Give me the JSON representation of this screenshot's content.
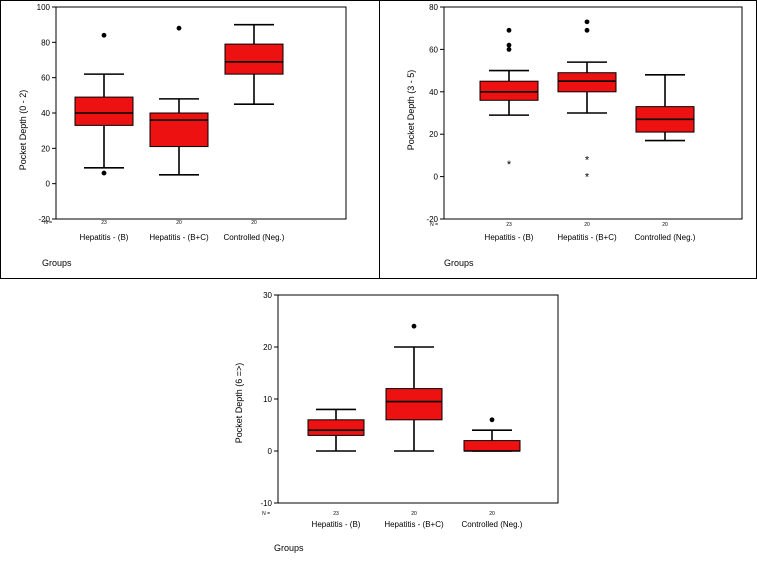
{
  "chart_data": [
    {
      "type": "box",
      "ylabel": "Pocket Depth (0 - 2)",
      "xlabel": "Groups",
      "n_label": "N =",
      "ylim": [
        -20,
        100
      ],
      "yticks": [
        -20,
        0,
        20,
        40,
        60,
        80,
        100
      ],
      "categories": [
        "Hepatitis - (B)",
        "Hepatitis - (B+C)",
        "Controlled (Neg.)"
      ],
      "n": [
        "23",
        "20",
        "20"
      ],
      "boxes": [
        {
          "min": 9,
          "q1": 33,
          "median": 40,
          "q3": 49,
          "max": 62,
          "outliers": [
            6,
            84
          ],
          "extremes": []
        },
        {
          "min": 5,
          "q1": 21,
          "median": 36,
          "q3": 40,
          "max": 48,
          "outliers": [
            88
          ],
          "extremes": []
        },
        {
          "min": 45,
          "q1": 62,
          "median": 69,
          "q3": 79,
          "max": 90,
          "outliers": [],
          "extremes": []
        }
      ]
    },
    {
      "type": "box",
      "ylabel": "Pocket Depth (3 - 5)",
      "xlabel": "Groups",
      "n_label": "N =",
      "ylim": [
        -20,
        80
      ],
      "yticks": [
        -20,
        0,
        20,
        40,
        60,
        80
      ],
      "categories": [
        "Hepatitis - (B)",
        "Hepatitis - (B+C)",
        "Controlled (Neg.)"
      ],
      "n": [
        "23",
        "20",
        "20"
      ],
      "boxes": [
        {
          "min": 29,
          "q1": 36,
          "median": 40,
          "q3": 45,
          "max": 50,
          "outliers": [
            60,
            62,
            69
          ],
          "extremes": [
            6
          ]
        },
        {
          "min": 30,
          "q1": 40,
          "median": 45,
          "q3": 49,
          "max": 54,
          "outliers": [
            69,
            73
          ],
          "extremes": [
            8,
            0
          ]
        },
        {
          "min": 17,
          "q1": 21,
          "median": 27,
          "q3": 33,
          "max": 48,
          "outliers": [],
          "extremes": []
        }
      ]
    },
    {
      "type": "box",
      "ylabel": "Pocket Depth (6 =>)",
      "xlabel": "Groups",
      "n_label": "N =",
      "ylim": [
        -10,
        30
      ],
      "yticks": [
        -10,
        0,
        10,
        20,
        30
      ],
      "categories": [
        "Hepatitis - (B)",
        "Hepatitis - (B+C)",
        "Controlled (Neg.)"
      ],
      "n": [
        "23",
        "20",
        "20"
      ],
      "boxes": [
        {
          "min": 0,
          "q1": 3,
          "median": 4,
          "q3": 6,
          "max": 8,
          "outliers": [],
          "extremes": []
        },
        {
          "min": 0,
          "q1": 6,
          "median": 9.5,
          "q3": 12,
          "max": 20,
          "outliers": [
            24
          ],
          "extremes": []
        },
        {
          "min": 0,
          "q1": 0,
          "median": 0,
          "q3": 2,
          "max": 4,
          "outliers": [
            6
          ],
          "extremes": []
        }
      ]
    }
  ],
  "colors": {
    "box_fill": "#ee1111",
    "line": "#000000"
  }
}
